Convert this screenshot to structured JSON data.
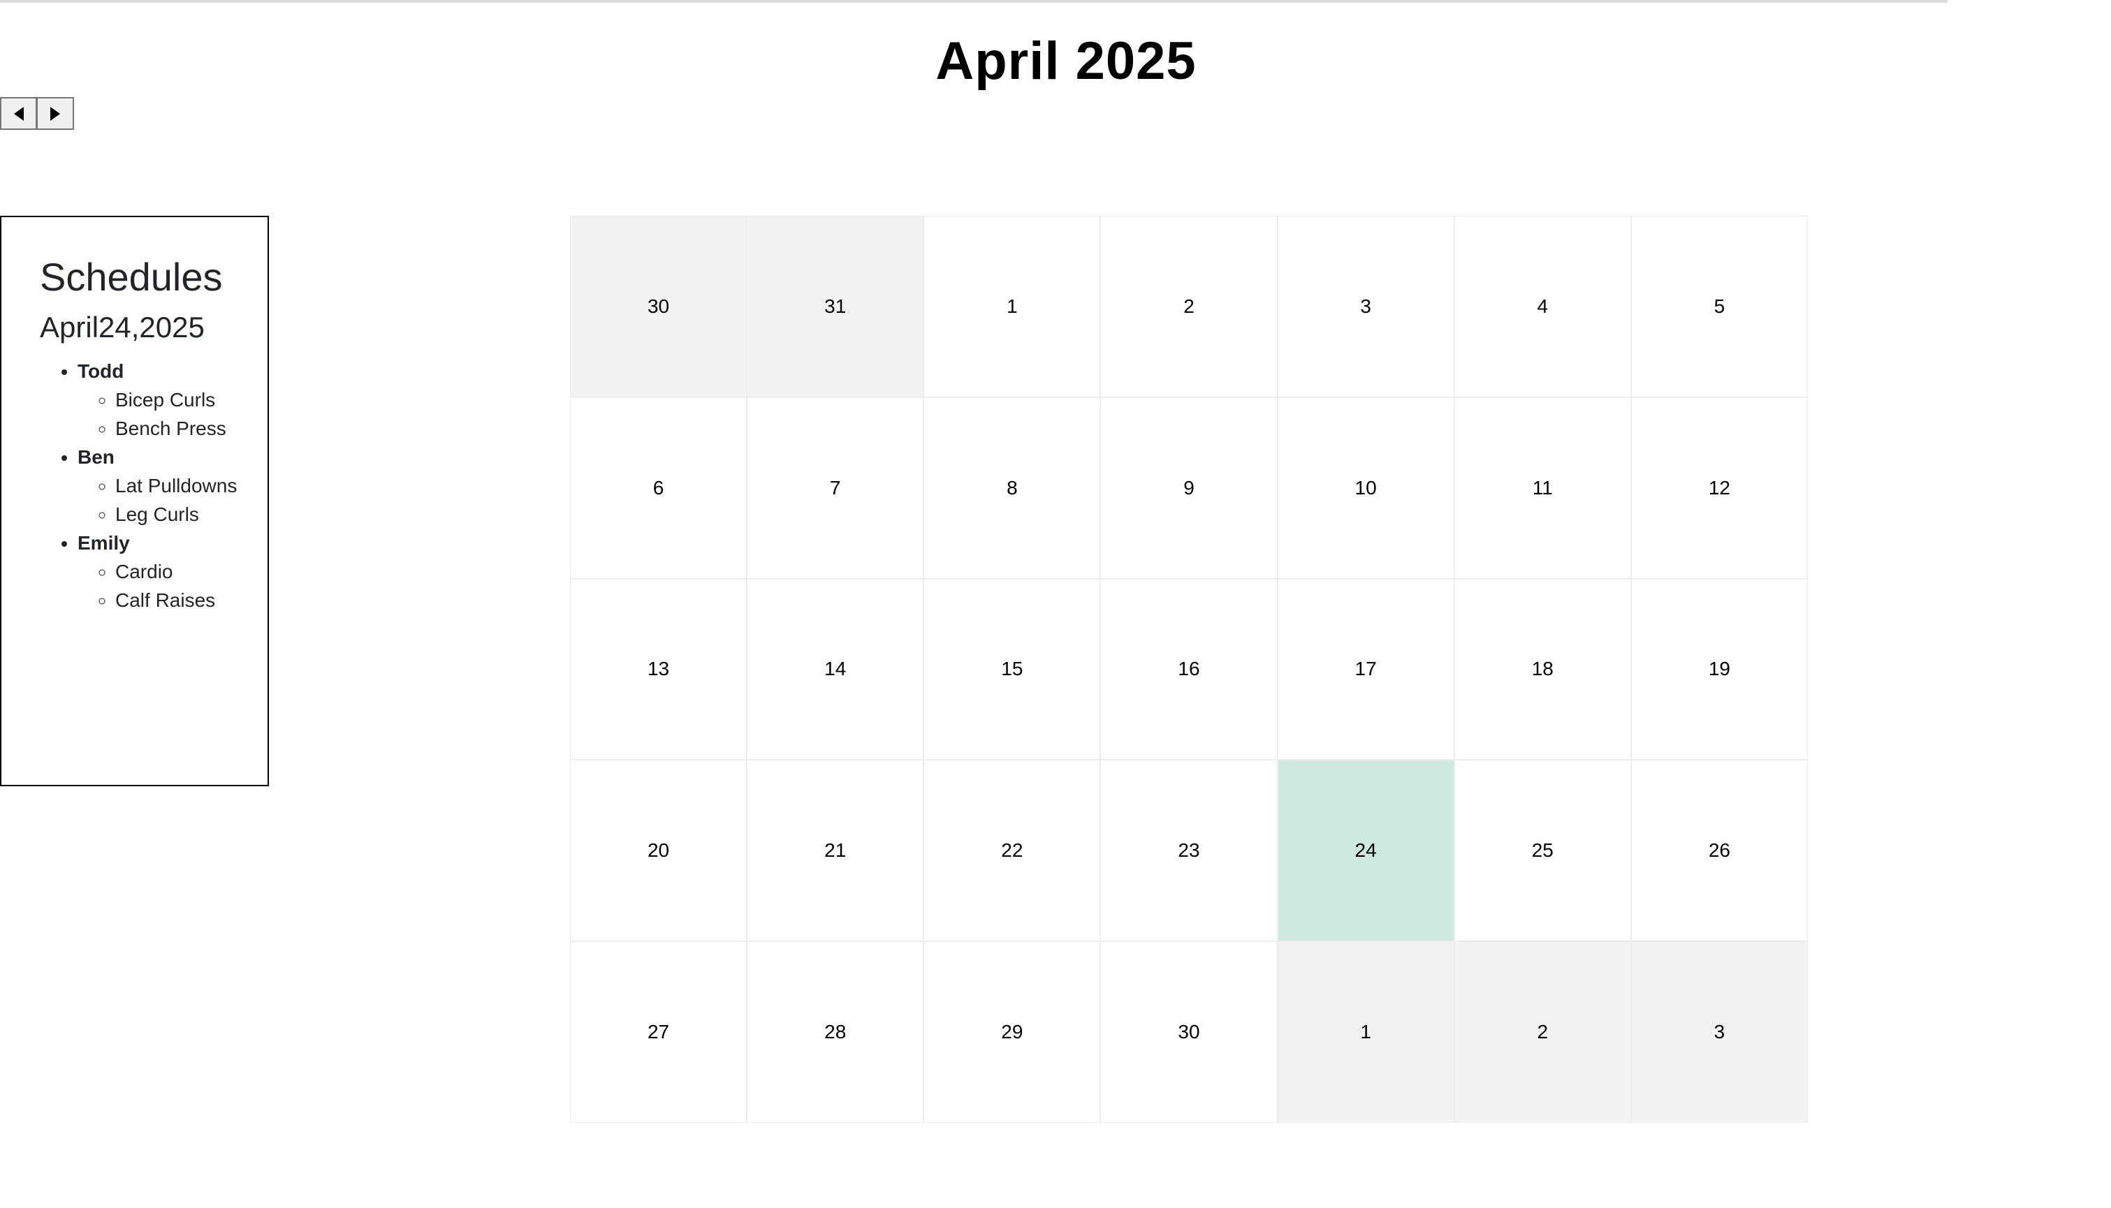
{
  "calendar": {
    "title": "April 2025",
    "nav": {
      "prev_icon": "caret-left-icon",
      "next_icon": "caret-right-icon"
    },
    "colors": {
      "today": "#cfe8e1",
      "other_month": "#f2f2f2"
    },
    "days": [
      {
        "label": "30",
        "other": true
      },
      {
        "label": "31",
        "other": true
      },
      {
        "label": "1"
      },
      {
        "label": "2"
      },
      {
        "label": "3"
      },
      {
        "label": "4"
      },
      {
        "label": "5"
      },
      {
        "label": "6"
      },
      {
        "label": "7"
      },
      {
        "label": "8"
      },
      {
        "label": "9"
      },
      {
        "label": "10"
      },
      {
        "label": "11"
      },
      {
        "label": "12"
      },
      {
        "label": "13"
      },
      {
        "label": "14"
      },
      {
        "label": "15"
      },
      {
        "label": "16"
      },
      {
        "label": "17"
      },
      {
        "label": "18"
      },
      {
        "label": "19"
      },
      {
        "label": "20"
      },
      {
        "label": "21"
      },
      {
        "label": "22"
      },
      {
        "label": "23"
      },
      {
        "label": "24",
        "today": true
      },
      {
        "label": "25"
      },
      {
        "label": "26"
      },
      {
        "label": "27"
      },
      {
        "label": "28"
      },
      {
        "label": "29"
      },
      {
        "label": "30"
      },
      {
        "label": "1",
        "other": true
      },
      {
        "label": "2",
        "other": true
      },
      {
        "label": "3",
        "other": true
      }
    ]
  },
  "schedules": {
    "heading": "Schedules",
    "date": "April24,2025",
    "people": [
      {
        "name": "Todd",
        "exercises": [
          "Bicep Curls",
          "Bench Press"
        ]
      },
      {
        "name": "Ben",
        "exercises": [
          "Lat Pulldowns",
          "Leg Curls"
        ]
      },
      {
        "name": "Emily",
        "exercises": [
          "Cardio",
          "Calf Raises"
        ]
      }
    ]
  }
}
